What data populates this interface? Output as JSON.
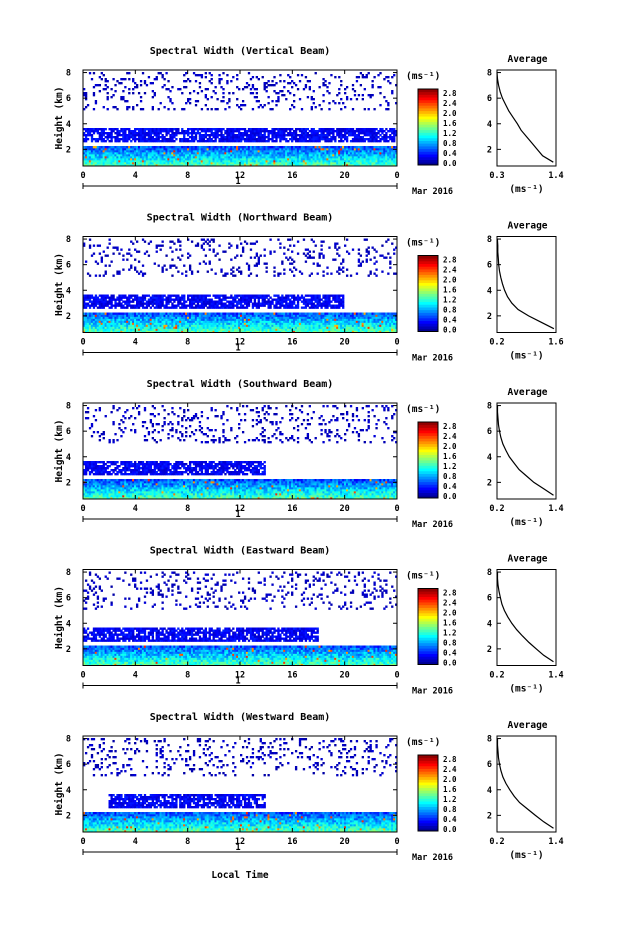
{
  "figure": {
    "xlabel": "Local Time",
    "date_label": "Mar 2016",
    "day_label": "1",
    "x_ticks": [
      "0",
      "4",
      "8",
      "12",
      "16",
      "20",
      "0"
    ],
    "y_ticks": [
      "2",
      "4",
      "6",
      "8"
    ],
    "ylabel": "Height (km)",
    "colorbar_unit": "(ms⁻¹)",
    "colorbar_ticks": [
      "0.0",
      "0.4",
      "0.8",
      "1.2",
      "1.6",
      "2.0",
      "2.4",
      "2.8"
    ],
    "average_title": "Average",
    "average_xlabel": "(ms⁻¹)",
    "average_y_ticks": [
      "2",
      "4",
      "6",
      "8"
    ]
  },
  "chart_data": [
    {
      "type": "heatmap",
      "title": "Spectral Width (Vertical Beam)",
      "beam": "vertical",
      "xlabel": "Local Time",
      "ylabel": "Height (km)",
      "xlim": [
        0,
        24
      ],
      "ylim": [
        0.7,
        8.2
      ],
      "colorbar": {
        "label": "(ms⁻¹)",
        "range": [
          0.0,
          2.8
        ]
      },
      "layers": [
        {
          "region": "boundary layer",
          "height_km": [
            0.7,
            2.2
          ],
          "time_h": [
            0,
            24
          ],
          "spectral_width_ms": 0.8,
          "peak_ms": 2.4
        },
        {
          "region": "cloud layer",
          "height_km": [
            2.6,
            3.7
          ],
          "time_h": [
            0,
            24
          ],
          "spectral_width_ms": 0.2
        },
        {
          "region": "upper sparse echoes",
          "height_km": [
            5.0,
            8.0
          ],
          "time_h": [
            0,
            24
          ],
          "spectral_width_ms": 0.1
        }
      ],
      "average_profile": {
        "title": "Average",
        "xlabel": "(ms⁻¹)",
        "x_ticks": [
          "0.3",
          "1.4"
        ],
        "xlim": [
          0.3,
          1.4
        ],
        "ylim": [
          0.7,
          8.2
        ],
        "height_km": [
          1.0,
          1.5,
          2.0,
          2.5,
          3.0,
          3.5,
          4.0,
          4.5,
          5.0,
          5.5,
          6.0,
          6.5,
          7.0,
          7.5,
          8.0
        ],
        "width_ms": [
          1.35,
          1.15,
          1.05,
          0.95,
          0.85,
          0.75,
          0.68,
          0.6,
          0.52,
          0.46,
          0.4,
          0.36,
          0.33,
          0.31,
          0.3
        ]
      }
    },
    {
      "type": "heatmap",
      "title": "Spectral Width (Northward Beam)",
      "beam": "northward",
      "xlabel": "Local Time",
      "ylabel": "Height (km)",
      "xlim": [
        0,
        24
      ],
      "ylim": [
        0.7,
        8.2
      ],
      "colorbar": {
        "label": "(ms⁻¹)",
        "range": [
          0.0,
          2.8
        ]
      },
      "layers": [
        {
          "region": "boundary layer",
          "height_km": [
            0.7,
            2.2
          ],
          "time_h": [
            0,
            24
          ],
          "spectral_width_ms": 0.8,
          "peak_ms": 2.4
        },
        {
          "region": "cloud layer",
          "height_km": [
            2.6,
            3.7
          ],
          "time_h": [
            0,
            20
          ],
          "spectral_width_ms": 0.2
        },
        {
          "region": "upper sparse echoes",
          "height_km": [
            5.0,
            8.0
          ],
          "time_h": [
            0,
            24
          ],
          "spectral_width_ms": 0.1
        }
      ],
      "average_profile": {
        "title": "Average",
        "xlabel": "(ms⁻¹)",
        "x_ticks": [
          "0.2",
          "1.6"
        ],
        "xlim": [
          0.2,
          1.6
        ],
        "ylim": [
          0.7,
          8.2
        ],
        "height_km": [
          1.0,
          1.5,
          2.0,
          2.5,
          3.0,
          3.5,
          4.0,
          4.5,
          5.0,
          5.5,
          6.0,
          6.5,
          7.0,
          7.5,
          8.0
        ],
        "width_ms": [
          1.55,
          1.25,
          0.95,
          0.7,
          0.55,
          0.45,
          0.38,
          0.33,
          0.29,
          0.26,
          0.24,
          0.23,
          0.22,
          0.22,
          0.21
        ]
      }
    },
    {
      "type": "heatmap",
      "title": "Spectral Width (Southward Beam)",
      "beam": "southward",
      "xlabel": "Local Time",
      "ylabel": "Height (km)",
      "xlim": [
        0,
        24
      ],
      "ylim": [
        0.7,
        8.2
      ],
      "colorbar": {
        "label": "(ms⁻¹)",
        "range": [
          0.0,
          2.8
        ]
      },
      "layers": [
        {
          "region": "boundary layer",
          "height_km": [
            0.7,
            2.2
          ],
          "time_h": [
            0,
            24
          ],
          "spectral_width_ms": 0.8,
          "peak_ms": 2.4
        },
        {
          "region": "cloud layer",
          "height_km": [
            2.6,
            3.7
          ],
          "time_h": [
            0,
            14
          ],
          "spectral_width_ms": 0.2
        },
        {
          "region": "upper sparse echoes",
          "height_km": [
            5.0,
            8.0
          ],
          "time_h": [
            0,
            24
          ],
          "spectral_width_ms": 0.1
        }
      ],
      "average_profile": {
        "title": "Average",
        "xlabel": "(ms⁻¹)",
        "x_ticks": [
          "0.2",
          "1.4"
        ],
        "xlim": [
          0.2,
          1.4
        ],
        "ylim": [
          0.7,
          8.2
        ],
        "height_km": [
          1.0,
          1.5,
          2.0,
          2.5,
          3.0,
          3.5,
          4.0,
          4.5,
          5.0,
          5.5,
          6.0,
          6.5,
          7.0,
          7.5,
          8.0
        ],
        "width_ms": [
          1.35,
          1.15,
          0.95,
          0.8,
          0.65,
          0.55,
          0.45,
          0.38,
          0.32,
          0.28,
          0.25,
          0.23,
          0.22,
          0.21,
          0.21
        ]
      }
    },
    {
      "type": "heatmap",
      "title": "Spectral Width (Eastward Beam)",
      "beam": "eastward",
      "xlabel": "Local Time",
      "ylabel": "Height (km)",
      "xlim": [
        0,
        24
      ],
      "ylim": [
        0.7,
        8.2
      ],
      "colorbar": {
        "label": "(ms⁻¹)",
        "range": [
          0.0,
          2.8
        ]
      },
      "layers": [
        {
          "region": "boundary layer",
          "height_km": [
            0.7,
            2.2
          ],
          "time_h": [
            0,
            24
          ],
          "spectral_width_ms": 0.8,
          "peak_ms": 2.4
        },
        {
          "region": "cloud layer",
          "height_km": [
            2.6,
            3.7
          ],
          "time_h": [
            0,
            18
          ],
          "spectral_width_ms": 0.2
        },
        {
          "region": "upper sparse echoes",
          "height_km": [
            5.0,
            8.0
          ],
          "time_h": [
            0,
            24
          ],
          "spectral_width_ms": 0.1
        }
      ],
      "average_profile": {
        "title": "Average",
        "xlabel": "(ms⁻¹)",
        "x_ticks": [
          "0.2",
          "1.4"
        ],
        "xlim": [
          0.2,
          1.4
        ],
        "ylim": [
          0.7,
          8.2
        ],
        "height_km": [
          1.0,
          1.5,
          2.0,
          2.5,
          3.0,
          3.5,
          4.0,
          4.5,
          5.0,
          5.5,
          6.0,
          6.5,
          7.0,
          7.5,
          8.0
        ],
        "width_ms": [
          1.35,
          1.15,
          1.0,
          0.85,
          0.72,
          0.6,
          0.5,
          0.42,
          0.35,
          0.3,
          0.27,
          0.24,
          0.22,
          0.21,
          0.21
        ]
      }
    },
    {
      "type": "heatmap",
      "title": "Spectral Width (Westward Beam)",
      "beam": "westward",
      "xlabel": "Local Time",
      "ylabel": "Height (km)",
      "xlim": [
        0,
        24
      ],
      "ylim": [
        0.7,
        8.2
      ],
      "colorbar": {
        "label": "(ms⁻¹)",
        "range": [
          0.0,
          2.8
        ]
      },
      "layers": [
        {
          "region": "boundary layer",
          "height_km": [
            0.7,
            2.2
          ],
          "time_h": [
            0,
            24
          ],
          "spectral_width_ms": 0.8,
          "peak_ms": 2.4
        },
        {
          "region": "cloud layer",
          "height_km": [
            2.6,
            3.7
          ],
          "time_h": [
            2,
            14
          ],
          "spectral_width_ms": 0.2
        },
        {
          "region": "upper sparse echoes",
          "height_km": [
            5.0,
            8.0
          ],
          "time_h": [
            0,
            24
          ],
          "spectral_width_ms": 0.1
        }
      ],
      "average_profile": {
        "title": "Average",
        "xlabel": "(ms⁻¹)",
        "x_ticks": [
          "0.2",
          "1.4"
        ],
        "xlim": [
          0.2,
          1.4
        ],
        "ylim": [
          0.7,
          8.2
        ],
        "height_km": [
          1.0,
          1.5,
          2.0,
          2.5,
          3.0,
          3.5,
          4.0,
          4.5,
          5.0,
          5.5,
          6.0,
          6.5,
          7.0,
          7.5,
          8.0
        ],
        "width_ms": [
          1.35,
          1.15,
          0.98,
          0.82,
          0.66,
          0.55,
          0.46,
          0.38,
          0.32,
          0.28,
          0.25,
          0.23,
          0.22,
          0.21,
          0.21
        ]
      }
    }
  ]
}
